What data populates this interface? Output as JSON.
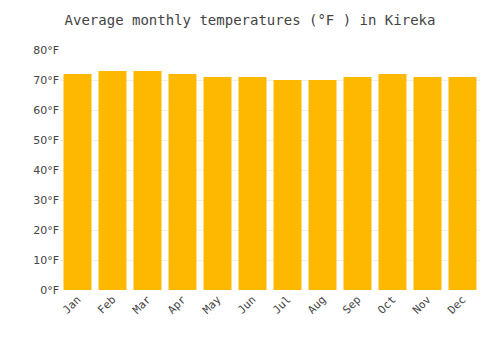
{
  "chart_data": {
    "type": "bar",
    "title": "Average monthly temperatures (°F ) in Kireka",
    "categories": [
      "Jan",
      "Feb",
      "Mar",
      "Apr",
      "May",
      "Jun",
      "Jul",
      "Aug",
      "Sep",
      "Oct",
      "Nov",
      "Dec"
    ],
    "values": [
      72,
      73,
      73,
      72,
      71,
      71,
      70,
      70,
      71,
      72,
      71,
      71
    ],
    "color": "#FFB800",
    "ylim": [
      0,
      80
    ],
    "yticks": [
      {
        "value": 0,
        "label": "0°F"
      },
      {
        "value": 10,
        "label": "10°F"
      },
      {
        "value": 20,
        "label": "20°F"
      },
      {
        "value": 30,
        "label": "30°F"
      },
      {
        "value": 40,
        "label": "40°F"
      },
      {
        "value": 50,
        "label": "50°F"
      },
      {
        "value": 60,
        "label": "60°F"
      },
      {
        "value": 70,
        "label": "70°F"
      },
      {
        "value": 80,
        "label": "80°F"
      }
    ],
    "grid": true
  }
}
